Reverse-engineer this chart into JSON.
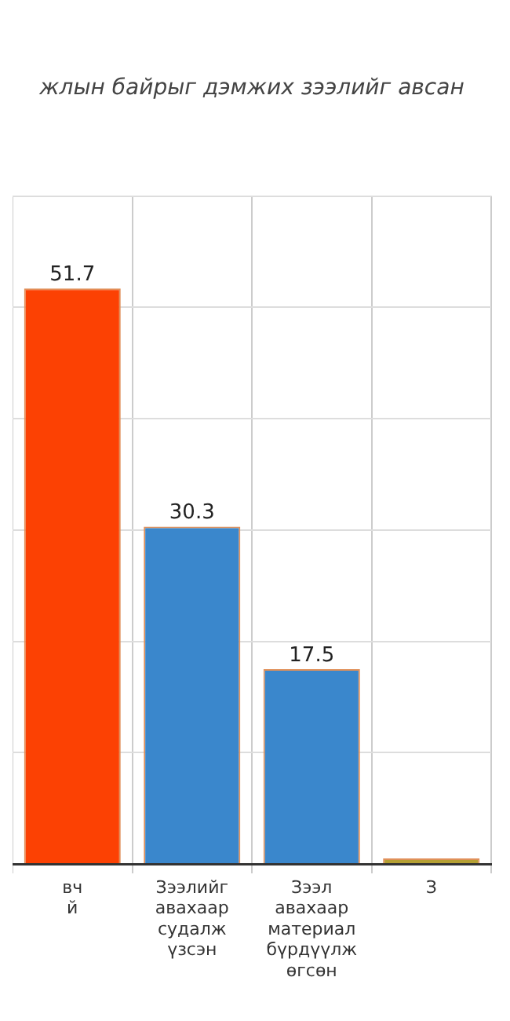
{
  "chart_data": {
    "type": "bar",
    "title": "жлын байрыг дэмжих зээлийг авсан",
    "categories": [
      "вч\nй",
      "Зээлийг\nавахаар судалж\nүзсэн",
      "Зээл авахаар\nматериал\nбүрдүүлж өгсөн",
      "З"
    ],
    "values": [
      51.7,
      30.3,
      17.5,
      0.5
    ],
    "colors": [
      "#fc4103",
      "#3a87cc",
      "#3a87cc",
      "#b5a033"
    ],
    "value_labels": [
      "51.7",
      "30.3",
      "17.5",
      null
    ],
    "ylim": [
      0,
      60
    ],
    "yticks": [
      {
        "value": 0,
        "label": null
      },
      {
        "value": 10,
        "label": null
      },
      {
        "value": 20,
        "label": null
      },
      {
        "value": 30,
        "label": null
      },
      {
        "value": 40,
        "label": null
      },
      {
        "value": 50,
        "label": null
      },
      {
        "value": 60,
        "label": null
      }
    ],
    "grid": true,
    "legend": false
  }
}
